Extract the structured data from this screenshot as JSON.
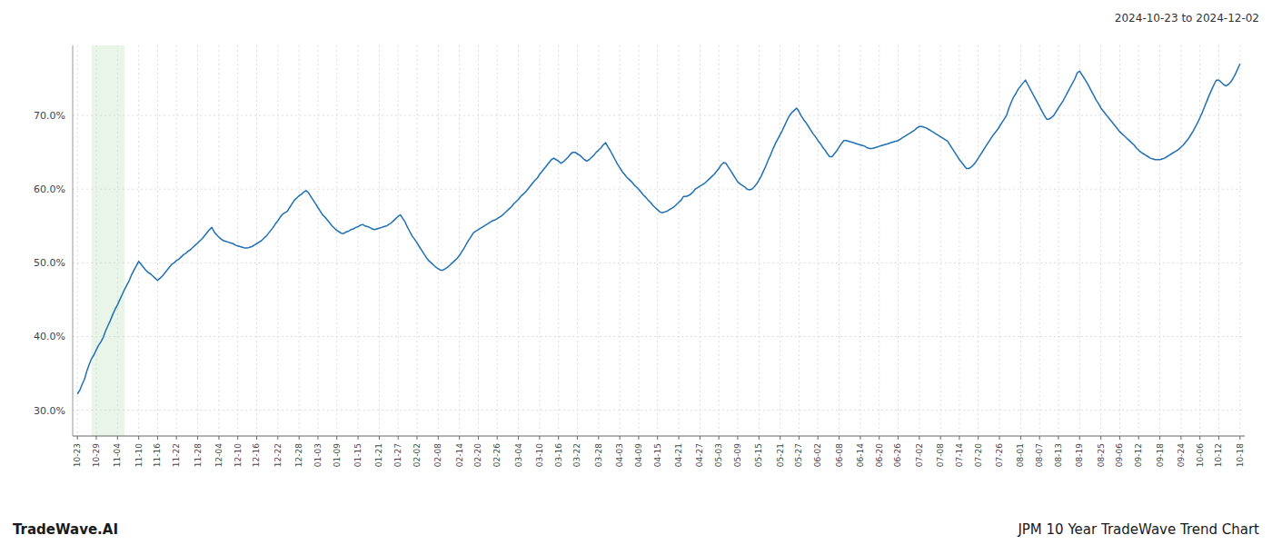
{
  "chart_data": {
    "type": "line",
    "title": "JPM 10 Year TradeWave Trend Chart",
    "subtitle": "2024-10-23 to 2024-12-02",
    "annotations": [
      "TradeWave.AI"
    ],
    "grid": true,
    "xlim": [
      -2,
      495
    ],
    "xticks": [
      {
        "value": 0,
        "label": "10-23"
      },
      {
        "value": 8,
        "label": "10-29"
      },
      {
        "value": 17,
        "label": "11-04"
      },
      {
        "value": 26,
        "label": "11-10"
      },
      {
        "value": 34,
        "label": "11-16"
      },
      {
        "value": 42,
        "label": "11-22"
      },
      {
        "value": 51,
        "label": "11-28"
      },
      {
        "value": 60,
        "label": "12-04"
      },
      {
        "value": 68,
        "label": "12-10"
      },
      {
        "value": 76,
        "label": "12-16"
      },
      {
        "value": 85,
        "label": "12-22"
      },
      {
        "value": 94,
        "label": "12-28"
      },
      {
        "value": 102,
        "label": "01-03"
      },
      {
        "value": 110,
        "label": "01-09"
      },
      {
        "value": 119,
        "label": "01-15"
      },
      {
        "value": 128,
        "label": "01-21"
      },
      {
        "value": 136,
        "label": "01-27"
      },
      {
        "value": 144,
        "label": "02-02"
      },
      {
        "value": 153,
        "label": "02-08"
      },
      {
        "value": 162,
        "label": "02-14"
      },
      {
        "value": 170,
        "label": "02-20"
      },
      {
        "value": 178,
        "label": "02-26"
      },
      {
        "value": 187,
        "label": "03-04"
      },
      {
        "value": 196,
        "label": "03-10"
      },
      {
        "value": 204,
        "label": "03-16"
      },
      {
        "value": 212,
        "label": "03-22"
      },
      {
        "value": 221,
        "label": "03-28"
      },
      {
        "value": 230,
        "label": "04-03"
      },
      {
        "value": 238,
        "label": "04-09"
      },
      {
        "value": 246,
        "label": "04-15"
      },
      {
        "value": 255,
        "label": "04-21"
      },
      {
        "value": 264,
        "label": "04-27"
      },
      {
        "value": 272,
        "label": "05-03"
      },
      {
        "value": 280,
        "label": "05-09"
      },
      {
        "value": 289,
        "label": "05-15"
      },
      {
        "value": 298,
        "label": "05-21"
      },
      {
        "value": 306,
        "label": "05-27"
      },
      {
        "value": 314,
        "label": "06-02"
      },
      {
        "value": 323,
        "label": "06-08"
      },
      {
        "value": 332,
        "label": "06-14"
      },
      {
        "value": 340,
        "label": "06-20"
      },
      {
        "value": 348,
        "label": "06-26"
      },
      {
        "value": 357,
        "label": "07-02"
      },
      {
        "value": 366,
        "label": "07-08"
      },
      {
        "value": 374,
        "label": "07-14"
      },
      {
        "value": 382,
        "label": "07-20"
      },
      {
        "value": 391,
        "label": "07-26"
      },
      {
        "value": 400,
        "label": "08-01"
      },
      {
        "value": 408,
        "label": "08-07"
      },
      {
        "value": 416,
        "label": "08-13"
      },
      {
        "value": 425,
        "label": "08-19"
      },
      {
        "value": 434,
        "label": "08-25"
      },
      {
        "value": 442,
        "label": "09-06"
      },
      {
        "value": 450,
        "label": "09-12"
      },
      {
        "value": 459,
        "label": "09-18"
      },
      {
        "value": 468,
        "label": "09-24"
      },
      {
        "value": 476,
        "label": "10-06"
      },
      {
        "value": 484,
        "label": "10-12"
      },
      {
        "value": 493,
        "label": "10-18"
      }
    ],
    "ylim": [
      0.265,
      0.795
    ],
    "yticks": [
      {
        "value": 0.3,
        "label": "30.0%"
      },
      {
        "value": 0.4,
        "label": "40.0%"
      },
      {
        "value": 0.5,
        "label": "50.0%"
      },
      {
        "value": 0.6,
        "label": "60.0%"
      },
      {
        "value": 0.7,
        "label": "70.0%"
      }
    ],
    "spans": [
      {
        "start": 6,
        "end": 20,
        "color": "#c8e6c9"
      }
    ],
    "series": [
      {
        "color": "#2070b4",
        "values": [
          0.322,
          0.327,
          0.335,
          0.342,
          0.353,
          0.362,
          0.37,
          0.375,
          0.382,
          0.388,
          0.393,
          0.399,
          0.408,
          0.415,
          0.422,
          0.43,
          0.437,
          0.443,
          0.45,
          0.457,
          0.464,
          0.47,
          0.476,
          0.484,
          0.49,
          0.496,
          0.502,
          0.498,
          0.494,
          0.49,
          0.487,
          0.485,
          0.482,
          0.479,
          0.476,
          0.479,
          0.482,
          0.486,
          0.49,
          0.494,
          0.498,
          0.5,
          0.503,
          0.505,
          0.508,
          0.511,
          0.513,
          0.516,
          0.518,
          0.521,
          0.524,
          0.527,
          0.53,
          0.533,
          0.537,
          0.541,
          0.545,
          0.548,
          0.542,
          0.538,
          0.535,
          0.532,
          0.53,
          0.529,
          0.528,
          0.527,
          0.526,
          0.524,
          0.523,
          0.522,
          0.521,
          0.52,
          0.52,
          0.521,
          0.522,
          0.524,
          0.526,
          0.528,
          0.53,
          0.533,
          0.536,
          0.54,
          0.544,
          0.548,
          0.553,
          0.557,
          0.562,
          0.566,
          0.568,
          0.57,
          0.575,
          0.58,
          0.585,
          0.588,
          0.591,
          0.593,
          0.596,
          0.598,
          0.595,
          0.59,
          0.585,
          0.58,
          0.575,
          0.57,
          0.565,
          0.562,
          0.558,
          0.554,
          0.55,
          0.547,
          0.544,
          0.542,
          0.54,
          0.54,
          0.542,
          0.543,
          0.545,
          0.546,
          0.548,
          0.549,
          0.551,
          0.552,
          0.55,
          0.549,
          0.548,
          0.546,
          0.545,
          0.546,
          0.547,
          0.548,
          0.549,
          0.55,
          0.552,
          0.554,
          0.557,
          0.56,
          0.563,
          0.565,
          0.56,
          0.555,
          0.548,
          0.542,
          0.536,
          0.532,
          0.527,
          0.522,
          0.517,
          0.512,
          0.507,
          0.503,
          0.5,
          0.497,
          0.494,
          0.492,
          0.49,
          0.49,
          0.492,
          0.494,
          0.497,
          0.5,
          0.503,
          0.506,
          0.51,
          0.515,
          0.52,
          0.526,
          0.531,
          0.536,
          0.541,
          0.543,
          0.545,
          0.547,
          0.549,
          0.551,
          0.553,
          0.555,
          0.557,
          0.558,
          0.56,
          0.562,
          0.564,
          0.567,
          0.57,
          0.573,
          0.576,
          0.58,
          0.583,
          0.586,
          0.59,
          0.593,
          0.596,
          0.6,
          0.604,
          0.608,
          0.612,
          0.615,
          0.62,
          0.624,
          0.628,
          0.632,
          0.636,
          0.64,
          0.642,
          0.64,
          0.638,
          0.635,
          0.637,
          0.64,
          0.643,
          0.647,
          0.65,
          0.65,
          0.648,
          0.646,
          0.643,
          0.64,
          0.638,
          0.64,
          0.643,
          0.646,
          0.65,
          0.653,
          0.656,
          0.66,
          0.663,
          0.657,
          0.652,
          0.646,
          0.64,
          0.634,
          0.629,
          0.624,
          0.62,
          0.616,
          0.613,
          0.61,
          0.606,
          0.603,
          0.6,
          0.596,
          0.592,
          0.589,
          0.585,
          0.582,
          0.578,
          0.575,
          0.572,
          0.569,
          0.568,
          0.569,
          0.57,
          0.572,
          0.574,
          0.576,
          0.579,
          0.582,
          0.585,
          0.59,
          0.59,
          0.591,
          0.593,
          0.596,
          0.6,
          0.602,
          0.604,
          0.606,
          0.608,
          0.611,
          0.614,
          0.617,
          0.62,
          0.624,
          0.628,
          0.633,
          0.636,
          0.635,
          0.63,
          0.625,
          0.62,
          0.615,
          0.61,
          0.607,
          0.605,
          0.603,
          0.6,
          0.599,
          0.6,
          0.603,
          0.607,
          0.612,
          0.618,
          0.625,
          0.632,
          0.64,
          0.647,
          0.655,
          0.662,
          0.668,
          0.674,
          0.68,
          0.687,
          0.694,
          0.7,
          0.704,
          0.707,
          0.71,
          0.705,
          0.699,
          0.694,
          0.69,
          0.685,
          0.68,
          0.675,
          0.671,
          0.666,
          0.662,
          0.657,
          0.653,
          0.648,
          0.644,
          0.644,
          0.648,
          0.652,
          0.657,
          0.662,
          0.666,
          0.666,
          0.665,
          0.664,
          0.663,
          0.662,
          0.661,
          0.66,
          0.659,
          0.658,
          0.656,
          0.655,
          0.655,
          0.656,
          0.657,
          0.658,
          0.659,
          0.66,
          0.661,
          0.662,
          0.663,
          0.664,
          0.665,
          0.666,
          0.668,
          0.67,
          0.672,
          0.674,
          0.676,
          0.678,
          0.68,
          0.683,
          0.685,
          0.685,
          0.684,
          0.683,
          0.681,
          0.679,
          0.677,
          0.675,
          0.673,
          0.671,
          0.669,
          0.667,
          0.665,
          0.66,
          0.655,
          0.65,
          0.645,
          0.64,
          0.636,
          0.632,
          0.628,
          0.628,
          0.63,
          0.633,
          0.637,
          0.642,
          0.647,
          0.652,
          0.657,
          0.662,
          0.667,
          0.672,
          0.676,
          0.68,
          0.685,
          0.69,
          0.695,
          0.7,
          0.71,
          0.718,
          0.725,
          0.73,
          0.736,
          0.74,
          0.744,
          0.748,
          0.742,
          0.736,
          0.73,
          0.724,
          0.718,
          0.712,
          0.706,
          0.7,
          0.695,
          0.695,
          0.697,
          0.7,
          0.705,
          0.71,
          0.715,
          0.72,
          0.726,
          0.732,
          0.738,
          0.744,
          0.75,
          0.758,
          0.76,
          0.755,
          0.75,
          0.745,
          0.739,
          0.733,
          0.727,
          0.721,
          0.716,
          0.71,
          0.706,
          0.702,
          0.698,
          0.694,
          0.69,
          0.686,
          0.682,
          0.678,
          0.675,
          0.672,
          0.669,
          0.666,
          0.663,
          0.66,
          0.656,
          0.653,
          0.65,
          0.648,
          0.646,
          0.644,
          0.642,
          0.641,
          0.64,
          0.64,
          0.64,
          0.641,
          0.642,
          0.644,
          0.646,
          0.648,
          0.65,
          0.652,
          0.654,
          0.657,
          0.66,
          0.664,
          0.668,
          0.673,
          0.678,
          0.684,
          0.69,
          0.697,
          0.704,
          0.712,
          0.72,
          0.728,
          0.735,
          0.742,
          0.748,
          0.748,
          0.745,
          0.742,
          0.74,
          0.742,
          0.745,
          0.75,
          0.756,
          0.763,
          0.77
        ]
      }
    ]
  }
}
